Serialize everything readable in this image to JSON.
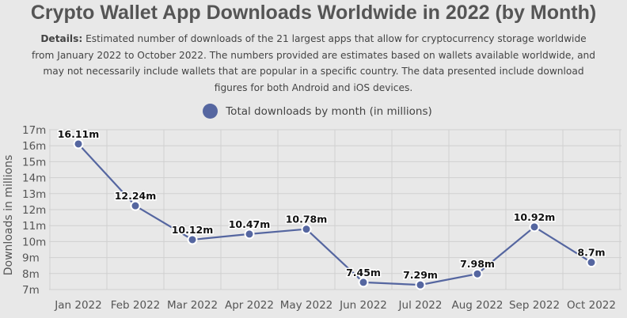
{
  "title": "Crypto Wallet App Downloads Worldwide in 2022 (by Month)",
  "details": {
    "label": "Details:",
    "text": " Estimated number of downloads of the 21 largest apps that allow for cryptocurrency storage worldwide from January 2022 to October 2022. The numbers provided are estimates based on wallets available worldwide, and may not necessarily include wallets that are popular in a specific country. The data presented include download figures for both Android and iOS devices."
  },
  "colors": {
    "series": "#5566a0",
    "grid": "#d0d0d0",
    "background": "#e8e8e8"
  },
  "chart_data": {
    "type": "line",
    "title": "Crypto Wallet App Downloads Worldwide in 2022 (by Month)",
    "xlabel": "",
    "ylabel": "Downloads in millions",
    "categories": [
      "Jan 2022",
      "Feb 2022",
      "Mar 2022",
      "Apr 2022",
      "May 2022",
      "Jun 2022",
      "Jul 2022",
      "Aug 2022",
      "Sep 2022",
      "Oct 2022"
    ],
    "series": [
      {
        "name": "Total downloads by month (in millions)",
        "values": [
          16.11,
          12.24,
          10.12,
          10.47,
          10.78,
          7.45,
          7.29,
          7.98,
          10.92,
          8.7
        ],
        "labels": [
          "16.11m",
          "12.24m",
          "10.12m",
          "10.47m",
          "10.78m",
          "7.45m",
          "7.29m",
          "7.98m",
          "10.92m",
          "8.7m"
        ]
      }
    ],
    "ylim": [
      7,
      17
    ],
    "yticks": [
      "7m",
      "8m",
      "9m",
      "10m",
      "11m",
      "12m",
      "13m",
      "14m",
      "15m",
      "16m",
      "17m"
    ],
    "legend": "top-center",
    "grid": true
  }
}
